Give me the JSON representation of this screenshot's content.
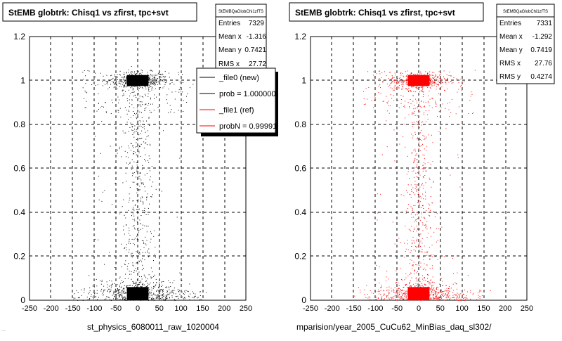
{
  "stray_text": "...",
  "panels": [
    {
      "title": "StEMB globtrk: Chisq1 vs zfirst, tpc+svt",
      "stats": {
        "header": "StEMBQaGlobChi1zfTS",
        "rows": [
          {
            "label": "Entries",
            "value": "7329"
          },
          {
            "label": "Mean x",
            "value": "-1.316"
          },
          {
            "label": "Mean y",
            "value": "0.7421"
          },
          {
            "label": "RMS x",
            "value": "27.72"
          }
        ]
      },
      "legend": [
        {
          "label": "_file0 (new)",
          "color": "#000000"
        },
        {
          "label": "prob = 1.000000",
          "color": "#000000"
        },
        {
          "label": "_file1 (ref)",
          "color": "#ff0000"
        },
        {
          "label": "probN = 0.99991",
          "color": "#ff0000"
        }
      ],
      "bottom_label": "st_physics_6080011_raw_1020004",
      "color": "#000000"
    },
    {
      "title": "StEMB globtrk: Chisq1 vs zfirst, tpc+svt",
      "stats": {
        "header": "StEMBQaGlobChi1zfTS",
        "rows": [
          {
            "label": "Entries",
            "value": "7331"
          },
          {
            "label": "Mean x",
            "value": "-1.292"
          },
          {
            "label": "Mean y",
            "value": "0.7419"
          },
          {
            "label": "RMS x",
            "value": "27.76"
          },
          {
            "label": "RMS y",
            "value": "0.4274"
          }
        ]
      },
      "bottom_label": "mparision/year_2005_CuCu62_MinBias_daq_sl302/",
      "color": "#ff0000"
    }
  ],
  "chart_data": [
    {
      "type": "scatter",
      "title": "StEMB globtrk: Chisq1 vs zfirst, tpc+svt",
      "xlim": [
        -250,
        250
      ],
      "ylim": [
        0,
        1.2
      ],
      "x_ticks": [
        "-250",
        "-200",
        "-150",
        "-100",
        "-50",
        "0",
        "50",
        "100",
        "150",
        "200",
        "250"
      ],
      "y_ticks": [
        "0",
        "0.2",
        "0.4",
        "0.6",
        "0.8",
        "1",
        "1.2"
      ],
      "grid": true,
      "clusters": [
        {
          "x_center": 0,
          "x_halfwidth": 25,
          "y": 1.0,
          "y_spread": 0.025,
          "description": "dense block"
        },
        {
          "x_center": 0,
          "x_halfwidth": 25,
          "y": 0.03,
          "y_spread": 0.03,
          "description": "dense block"
        }
      ],
      "series": [
        {
          "color": "#000000"
        }
      ]
    },
    {
      "type": "scatter",
      "title": "StEMB globtrk: Chisq1 vs zfirst, tpc+svt",
      "xlim": [
        -250,
        250
      ],
      "ylim": [
        0,
        1.2
      ],
      "x_ticks": [
        "-250",
        "-200",
        "-150",
        "-100",
        "-50",
        "0",
        "50",
        "100",
        "150",
        "200",
        "250"
      ],
      "y_ticks": [
        "0",
        "0.2",
        "0.4",
        "0.6",
        "0.8",
        "1",
        "1.2"
      ],
      "grid": true,
      "clusters": [
        {
          "x_center": 0,
          "x_halfwidth": 25,
          "y": 1.0,
          "y_spread": 0.025,
          "description": "dense block"
        },
        {
          "x_center": 0,
          "x_halfwidth": 25,
          "y": 0.03,
          "y_spread": 0.03,
          "description": "dense block"
        }
      ],
      "series": [
        {
          "color": "#ff0000"
        }
      ]
    }
  ]
}
